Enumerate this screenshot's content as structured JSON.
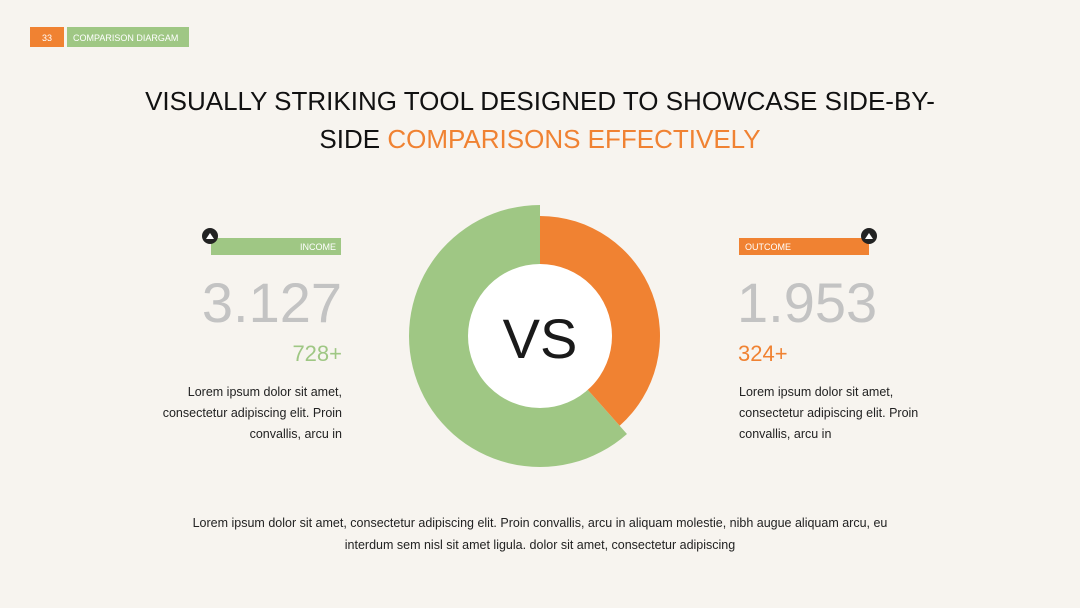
{
  "header": {
    "page_number": "33",
    "section": "COMPARISON DIARGAM"
  },
  "title": {
    "line1": "VISUALLY STRIKING TOOL DESIGNED TO SHOWCASE SIDE-BY-",
    "line2_black": "SIDE",
    "line2_orange": "COMPARISONS EFFECTIVELY"
  },
  "center_label": "VS",
  "income": {
    "label": "INCOME",
    "value": "3.127",
    "delta": "728+",
    "description": [
      "Lorem ipsum dolor sit amet,",
      "consectetur adipiscing elit. Proin",
      "convallis, arcu in"
    ]
  },
  "outcome": {
    "label": "OUTCOME",
    "value": "1.953",
    "delta": "324+",
    "description": [
      "Lorem ipsum dolor sit amet,",
      "consectetur adipiscing elit. Proin",
      "convallis, arcu in"
    ]
  },
  "footer": [
    "Lorem ipsum dolor sit amet, consectetur adipiscing elit. Proin convallis, arcu in aliquam molestie, nibh augue aliquam arcu, eu",
    "interdum sem nisl sit amet ligula. dolor sit amet, consectetur adipiscing"
  ]
}
